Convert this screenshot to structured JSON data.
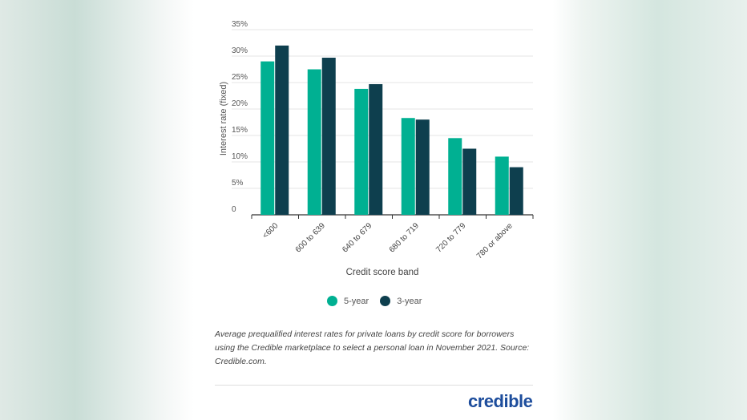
{
  "chart_data": {
    "type": "bar",
    "categories": [
      "<600",
      "600 to 639",
      "640 to 679",
      "680 to 719",
      "720 to 779",
      "780 or above"
    ],
    "series": [
      {
        "name": "5-year",
        "values": [
          29.0,
          27.5,
          23.8,
          18.3,
          14.5,
          11.0
        ],
        "color": "#00b092"
      },
      {
        "name": "3-year",
        "values": [
          32.0,
          29.7,
          24.7,
          18.0,
          12.5,
          9.0
        ],
        "color": "#0e3f4e"
      }
    ],
    "xlabel": "Credit score band",
    "ylabel": "Interest rate (fixed)",
    "ylim": [
      0,
      35
    ],
    "yticks": [
      "0",
      "5%",
      "10%",
      "15%",
      "20%",
      "25%",
      "30%",
      "35%"
    ],
    "grid": true,
    "legend": "bottom"
  },
  "caption": "Average prequalified interest rates for private loans by credit score for borrowers using the Credible marketplace to select a personal loan in November 2021. Source: Credible.com.",
  "logo": "credible"
}
